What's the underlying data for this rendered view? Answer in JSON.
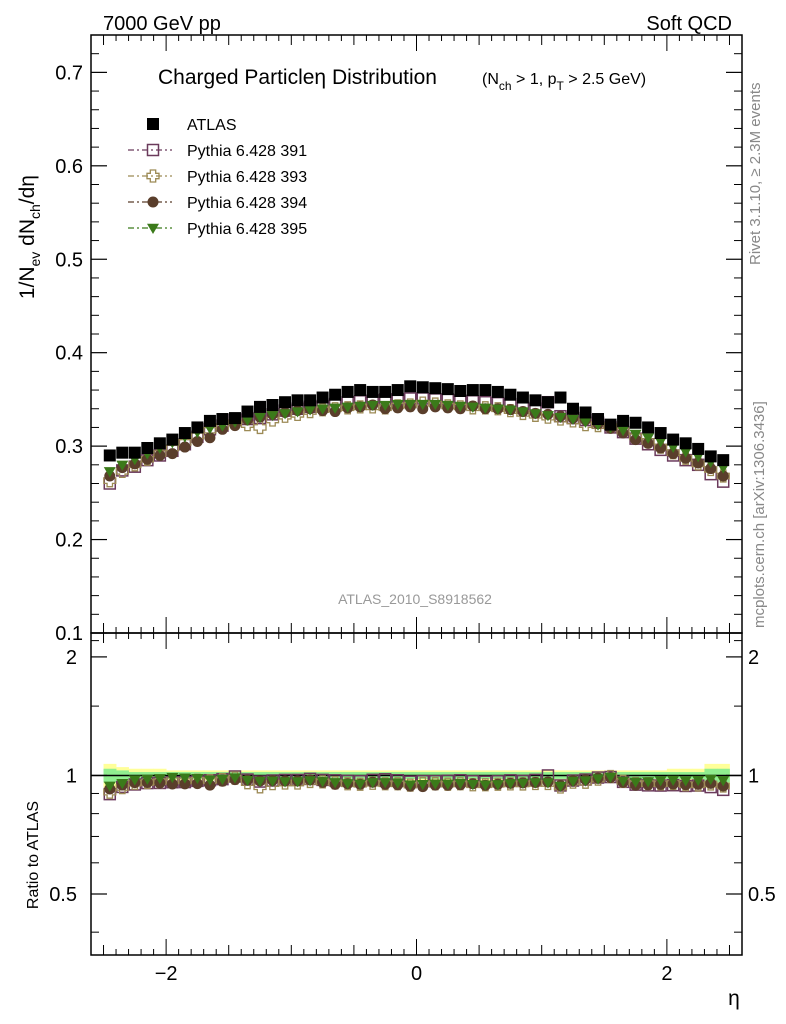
{
  "header": {
    "left": "7000 GeV pp",
    "right": "Soft QCD"
  },
  "side": {
    "rivet": "Rivet 3.1.10, ≥ 2.3M events",
    "mcplots": "mcplots.cern.ch [arXiv:1306.3436]"
  },
  "chart_data": [
    {
      "type": "scatter",
      "title": "Charged Particle η Distribution",
      "title_main": "Charged Particle",
      "title_eta": "η",
      "title_dist": " Distribution",
      "subtitle": "(N_ch > 1, p_T > 2.5 GeV)",
      "ylabel": "1/N_ev dN_ch/dη",
      "watermark": "ATLAS_2010_S8918562",
      "xlabel": "η",
      "xlim": [
        -2.6,
        2.6
      ],
      "ylim": [
        0.1,
        0.74
      ],
      "yticks": [
        0.1,
        0.2,
        0.3,
        0.4,
        0.5,
        0.6,
        0.7
      ],
      "ytick_labels": [
        "0.1",
        "0.2",
        "0.3",
        "0.4",
        "0.5",
        "0.6",
        "0.7"
      ],
      "legend_position": "top-left",
      "x": [
        -2.45,
        -2.35,
        -2.25,
        -2.15,
        -2.05,
        -1.95,
        -1.85,
        -1.75,
        -1.65,
        -1.55,
        -1.45,
        -1.35,
        -1.25,
        -1.15,
        -1.05,
        -0.95,
        -0.85,
        -0.75,
        -0.65,
        -0.55,
        -0.45,
        -0.35,
        -0.25,
        -0.15,
        -0.05,
        0.05,
        0.15,
        0.25,
        0.35,
        0.45,
        0.55,
        0.65,
        0.75,
        0.85,
        0.95,
        1.05,
        1.15,
        1.25,
        1.35,
        1.45,
        1.55,
        1.65,
        1.75,
        1.85,
        1.95,
        2.05,
        2.15,
        2.25,
        2.35,
        2.45
      ],
      "series": [
        {
          "name": "ATLAS",
          "marker": "square-filled",
          "color": "#000000",
          "values": [
            0.29,
            0.293,
            0.293,
            0.298,
            0.303,
            0.307,
            0.314,
            0.32,
            0.327,
            0.329,
            0.33,
            0.337,
            0.342,
            0.344,
            0.347,
            0.349,
            0.349,
            0.352,
            0.355,
            0.358,
            0.36,
            0.358,
            0.358,
            0.36,
            0.364,
            0.363,
            0.362,
            0.361,
            0.359,
            0.36,
            0.36,
            0.358,
            0.355,
            0.352,
            0.349,
            0.347,
            0.352,
            0.34,
            0.336,
            0.329,
            0.323,
            0.327,
            0.325,
            0.32,
            0.314,
            0.307,
            0.303,
            0.297,
            0.289,
            0.285
          ]
        },
        {
          "name": "Pythia 6.428 391",
          "marker": "square-open",
          "color": "#6b3a5c",
          "values": [
            0.26,
            0.274,
            0.278,
            0.285,
            0.29,
            0.295,
            0.302,
            0.31,
            0.318,
            0.322,
            0.328,
            0.329,
            0.33,
            0.334,
            0.338,
            0.34,
            0.342,
            0.343,
            0.345,
            0.347,
            0.348,
            0.349,
            0.35,
            0.35,
            0.351,
            0.351,
            0.35,
            0.35,
            0.349,
            0.348,
            0.347,
            0.346,
            0.345,
            0.341,
            0.34,
            0.347,
            0.332,
            0.33,
            0.328,
            0.325,
            0.32,
            0.315,
            0.308,
            0.302,
            0.296,
            0.29,
            0.285,
            0.28,
            0.27,
            0.262
          ]
        },
        {
          "name": "Pythia 6.428 393",
          "marker": "cross-open",
          "color": "#9c8a55",
          "values": [
            0.263,
            0.273,
            0.28,
            0.286,
            0.292,
            0.298,
            0.304,
            0.311,
            0.317,
            0.321,
            0.325,
            0.323,
            0.32,
            0.328,
            0.332,
            0.334,
            0.337,
            0.339,
            0.34,
            0.341,
            0.342,
            0.342,
            0.341,
            0.343,
            0.344,
            0.346,
            0.345,
            0.343,
            0.342,
            0.341,
            0.341,
            0.34,
            0.338,
            0.335,
            0.333,
            0.331,
            0.329,
            0.327,
            0.323,
            0.322,
            0.321,
            0.316,
            0.31,
            0.305,
            0.299,
            0.293,
            0.287,
            0.281,
            0.275,
            0.268
          ]
        },
        {
          "name": "Pythia 6.428 394",
          "marker": "circle-filled",
          "color": "#5a3e2b",
          "values": [
            0.268,
            0.277,
            0.281,
            0.286,
            0.29,
            0.292,
            0.299,
            0.305,
            0.309,
            0.318,
            0.322,
            0.328,
            0.331,
            0.334,
            0.336,
            0.338,
            0.34,
            0.338,
            0.337,
            0.341,
            0.342,
            0.344,
            0.34,
            0.341,
            0.342,
            0.34,
            0.342,
            0.341,
            0.34,
            0.343,
            0.34,
            0.34,
            0.339,
            0.337,
            0.335,
            0.334,
            0.332,
            0.33,
            0.328,
            0.324,
            0.319,
            0.314,
            0.307,
            0.303,
            0.298,
            0.292,
            0.287,
            0.282,
            0.276,
            0.268
          ]
        },
        {
          "name": "Pythia 6.428 395",
          "marker": "triangle-down-filled",
          "color": "#3b7a1a",
          "values": [
            0.273,
            0.28,
            0.286,
            0.292,
            0.298,
            0.304,
            0.31,
            0.315,
            0.319,
            0.322,
            0.326,
            0.328,
            0.331,
            0.333,
            0.335,
            0.337,
            0.339,
            0.34,
            0.341,
            0.342,
            0.343,
            0.344,
            0.344,
            0.345,
            0.345,
            0.345,
            0.345,
            0.344,
            0.343,
            0.342,
            0.341,
            0.34,
            0.339,
            0.337,
            0.335,
            0.333,
            0.331,
            0.329,
            0.326,
            0.323,
            0.32,
            0.317,
            0.313,
            0.309,
            0.305,
            0.299,
            0.294,
            0.289,
            0.283,
            0.277
          ]
        }
      ]
    },
    {
      "type": "scatter",
      "ylabel": "Ratio to ATLAS",
      "xlim": [
        -2.6,
        2.6
      ],
      "ylim": [
        0.35,
        2.3
      ],
      "yticks": [
        0.5,
        1,
        2
      ],
      "ytick_labels": [
        "0.5",
        "1",
        "2"
      ],
      "xticks": [
        -2,
        0,
        2
      ],
      "xtick_labels": [
        "−2",
        "0",
        "2"
      ],
      "reference_line": 1,
      "uncertainty_bands": [
        {
          "color": "#ffff99",
          "half_width": [
            0.07,
            0.05,
            0.04,
            0.04,
            0.04,
            0.03,
            0.03,
            0.03,
            0.03,
            0.03,
            0.03,
            0.03,
            0.03,
            0.03,
            0.03,
            0.03,
            0.03,
            0.03,
            0.03,
            0.03,
            0.03,
            0.03,
            0.03,
            0.03,
            0.03,
            0.03,
            0.03,
            0.03,
            0.03,
            0.03,
            0.03,
            0.03,
            0.03,
            0.03,
            0.03,
            0.03,
            0.03,
            0.03,
            0.03,
            0.03,
            0.03,
            0.03,
            0.03,
            0.03,
            0.03,
            0.04,
            0.04,
            0.04,
            0.07,
            0.07
          ]
        },
        {
          "color": "#90ee90",
          "half_width": [
            0.04,
            0.03,
            0.02,
            0.02,
            0.02,
            0.02,
            0.02,
            0.02,
            0.02,
            0.02,
            0.02,
            0.02,
            0.02,
            0.02,
            0.02,
            0.02,
            0.02,
            0.02,
            0.02,
            0.02,
            0.02,
            0.02,
            0.02,
            0.02,
            0.02,
            0.02,
            0.02,
            0.02,
            0.02,
            0.02,
            0.02,
            0.02,
            0.02,
            0.02,
            0.02,
            0.02,
            0.02,
            0.02,
            0.02,
            0.02,
            0.02,
            0.02,
            0.02,
            0.02,
            0.02,
            0.02,
            0.02,
            0.02,
            0.04,
            0.04
          ]
        }
      ]
    }
  ]
}
